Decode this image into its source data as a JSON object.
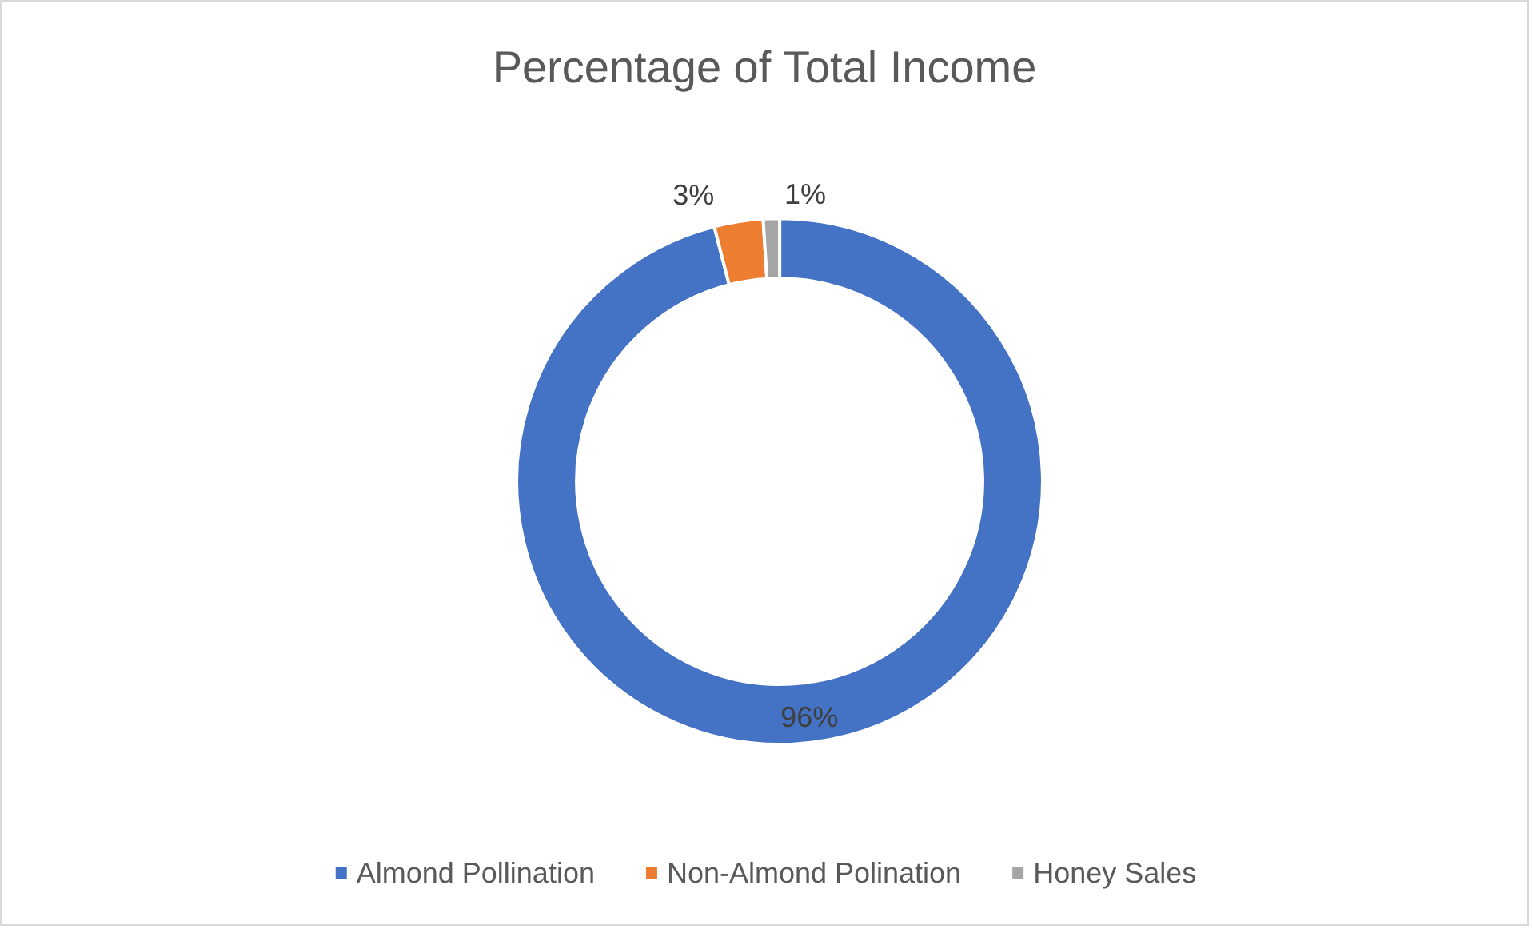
{
  "chart_data": {
    "type": "donut",
    "title": "Percentage of Total Income",
    "categories": [
      "Almond Pollination",
      "Non-Almond Polination",
      "Honey Sales"
    ],
    "values": [
      96,
      3,
      1
    ],
    "colors": [
      "#4472c4",
      "#ed7d31",
      "#a5a5a5"
    ],
    "value_labels": [
      "96%",
      "3%",
      "1%"
    ],
    "legend": "bottom"
  }
}
